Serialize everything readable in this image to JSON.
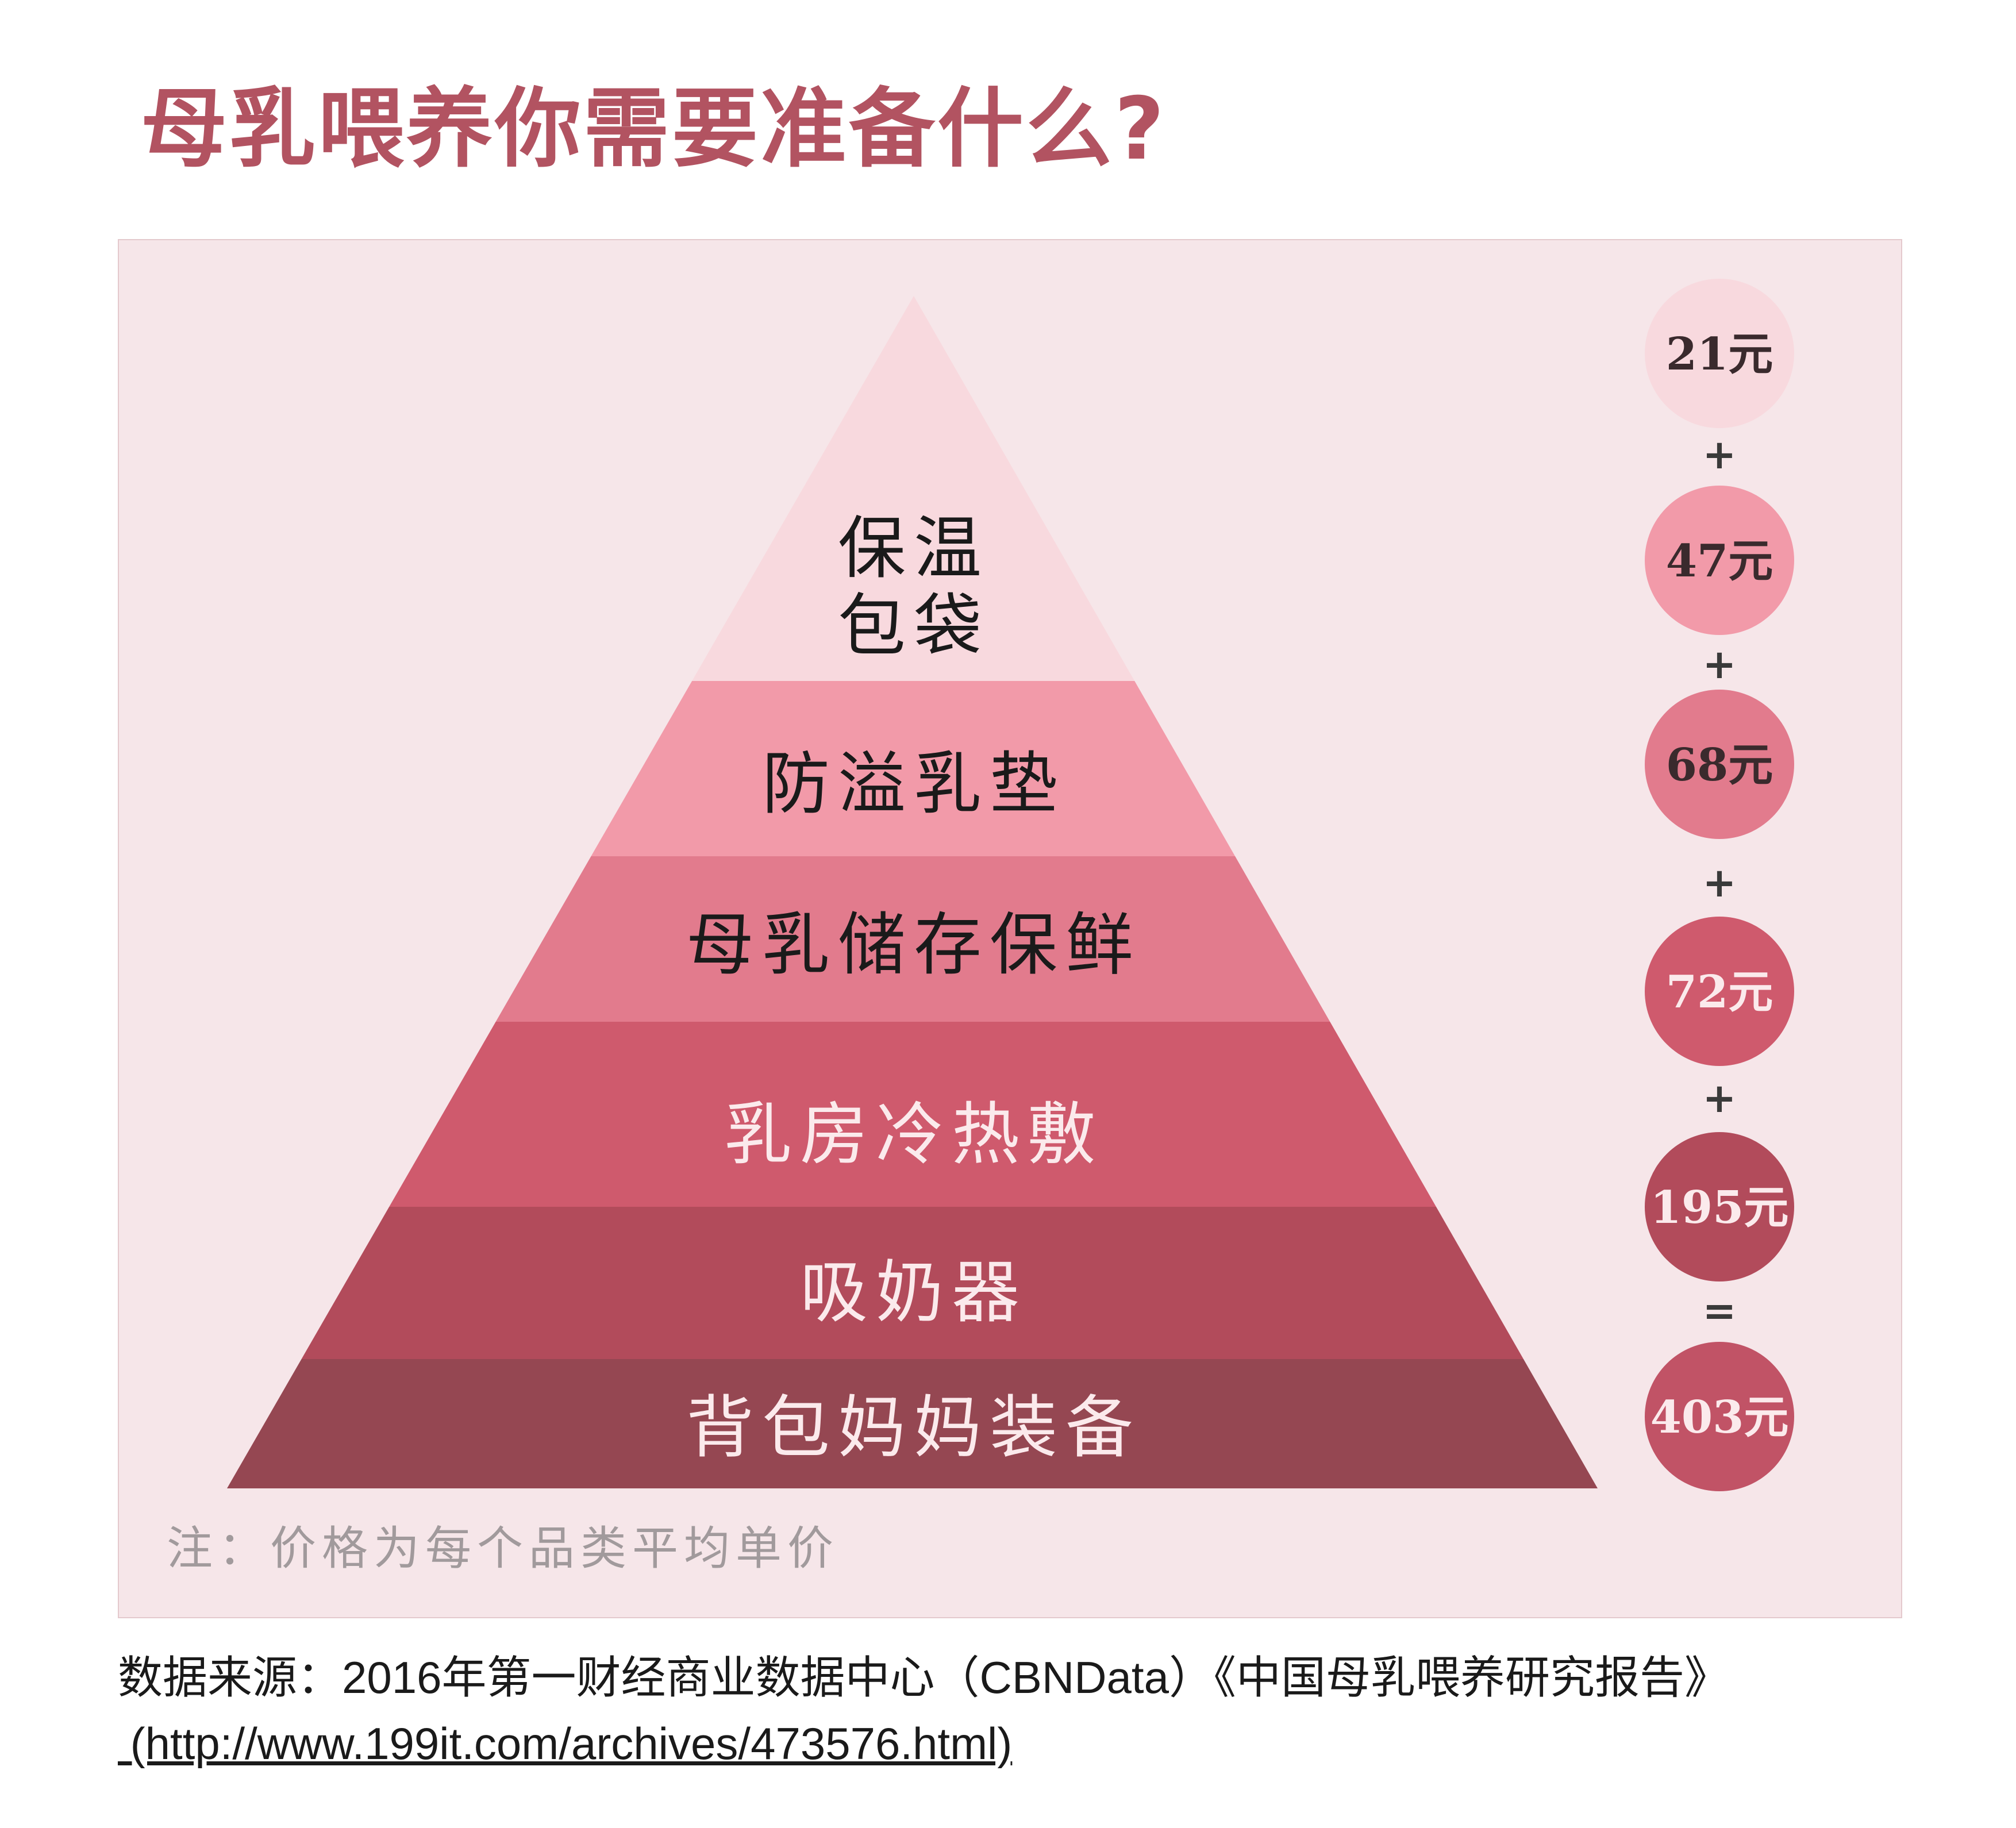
{
  "title": "母乳喂养你需要准备什么?",
  "colors": {
    "title": "#b25361",
    "panel_bg": "#f6e6e9",
    "panel_border": "#e4c9cd",
    "tier_dark_text": "#1a1a1a",
    "tier_light_text": "#fbeaec",
    "op_text": "#3a3a3a"
  },
  "tiers": [
    {
      "label": [
        "保温",
        "包袋"
      ],
      "color": "#f8d9de",
      "text_color": "#1a1a1a"
    },
    {
      "label": [
        "防溢乳垫"
      ],
      "color": "#f29aa9",
      "text_color": "#1a1a1a"
    },
    {
      "label": [
        "母乳储存保鲜"
      ],
      "color": "#e27b8d",
      "text_color": "#1a1a1a"
    },
    {
      "label": [
        "乳房冷热敷"
      ],
      "color": "#cf5a6d",
      "text_color": "#fbeaec"
    },
    {
      "label": [
        "吸奶器"
      ],
      "color": "#b24b5b",
      "text_color": "#fbeaec"
    },
    {
      "label": [
        "背包妈妈装备"
      ],
      "color": "#954752",
      "text_color": "#fbeaec"
    }
  ],
  "costs": [
    {
      "label": "21元",
      "value": 21,
      "color": "#f8d9de",
      "text_color": "#3a2a2d"
    },
    {
      "label": "47元",
      "value": 47,
      "color": "#f29aa9",
      "text_color": "#3a2a2d"
    },
    {
      "label": "68元",
      "value": 68,
      "color": "#e27b8d",
      "text_color": "#3a2a2d"
    },
    {
      "label": "72元",
      "value": 72,
      "color": "#cf5a6d",
      "text_color": "#fbeaec"
    },
    {
      "label": "195元",
      "value": 195,
      "color": "#b24b5b",
      "text_color": "#fbeaec"
    },
    {
      "label": "403元",
      "value": 403,
      "color": "#c15366",
      "text_color": "#fbeaec"
    }
  ],
  "operators": [
    "+",
    "+",
    "+",
    "+",
    "="
  ],
  "note": "注：价格为每个品类平均单价",
  "source": {
    "line": "数据来源：2016年第一财经商业数据中心（CBNData）《中国母乳喂养研究报告》",
    "url": " (http://www.199it.com/archives/473576.html)"
  }
}
